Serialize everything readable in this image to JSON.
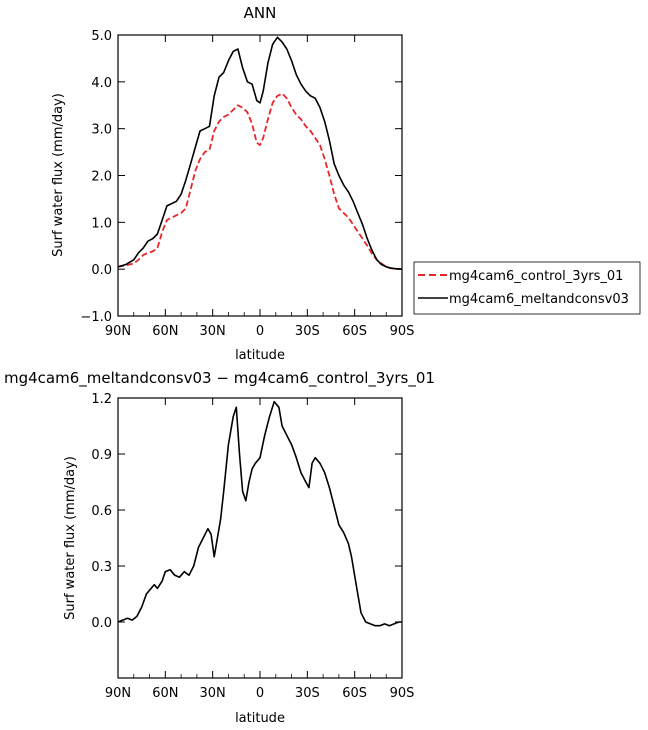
{
  "chart_data": [
    {
      "type": "line",
      "title": "ANN",
      "xlabel": "latitude",
      "ylabel": "Surf water flux (mm/day)",
      "xlim": [
        90,
        -90
      ],
      "ylim": [
        -1.0,
        5.0
      ],
      "xticks": [
        90,
        60,
        30,
        0,
        -30,
        -60,
        -90
      ],
      "xticklabels": [
        "90N",
        "60N",
        "30N",
        "0",
        "30S",
        "60S",
        "90S"
      ],
      "yticks": [
        -1.0,
        0.0,
        1.0,
        2.0,
        3.0,
        4.0,
        5.0
      ],
      "yticklabels": [
        "−1.0",
        "0.0",
        "1.0",
        "2.0",
        "3.0",
        "4.0",
        "5.0"
      ],
      "legend_position": "right",
      "series": [
        {
          "name": "mg4cam6_control_3yrs_01",
          "color": "#e8262a",
          "style": "dashed",
          "x": [
            90,
            85,
            80,
            77,
            74,
            71,
            68,
            65,
            62,
            59,
            56,
            53,
            50,
            47,
            44,
            41,
            38,
            35,
            32,
            29,
            26,
            23,
            20,
            17,
            14,
            11,
            8,
            5,
            2,
            0,
            -2,
            -5,
            -8,
            -11,
            -14,
            -17,
            -20,
            -23,
            -26,
            -29,
            -32,
            -35,
            -38,
            -41,
            -44,
            -47,
            -50,
            -53,
            -56,
            -59,
            -62,
            -65,
            -68,
            -71,
            -74,
            -77,
            -80,
            -83,
            -86,
            -90
          ],
          "y": [
            0.05,
            0.08,
            0.12,
            0.2,
            0.3,
            0.35,
            0.38,
            0.45,
            0.8,
            1.05,
            1.1,
            1.15,
            1.2,
            1.3,
            1.7,
            2.1,
            2.35,
            2.5,
            2.55,
            2.95,
            3.15,
            3.25,
            3.3,
            3.4,
            3.5,
            3.45,
            3.35,
            3.1,
            2.7,
            2.65,
            2.8,
            3.2,
            3.55,
            3.7,
            3.75,
            3.65,
            3.45,
            3.3,
            3.2,
            3.05,
            2.95,
            2.8,
            2.65,
            2.35,
            2.0,
            1.6,
            1.3,
            1.2,
            1.1,
            0.95,
            0.8,
            0.65,
            0.5,
            0.33,
            0.2,
            0.12,
            0.05,
            0.02,
            0.01,
            0.0
          ]
        },
        {
          "name": "mg4cam6_meltandconsv03",
          "color": "#000000",
          "style": "solid",
          "x": [
            90,
            85,
            80,
            77,
            74,
            71,
            68,
            65,
            62,
            59,
            56,
            53,
            50,
            47,
            44,
            41,
            38,
            35,
            32,
            29,
            26,
            23,
            20,
            17,
            14,
            11,
            8,
            5,
            2,
            0,
            -2,
            -5,
            -8,
            -11,
            -14,
            -17,
            -20,
            -23,
            -26,
            -29,
            -32,
            -35,
            -38,
            -41,
            -44,
            -47,
            -50,
            -53,
            -56,
            -59,
            -62,
            -65,
            -68,
            -71,
            -74,
            -77,
            -80,
            -83,
            -86,
            -90
          ],
          "y": [
            0.05,
            0.1,
            0.2,
            0.35,
            0.45,
            0.6,
            0.65,
            0.75,
            1.05,
            1.35,
            1.4,
            1.45,
            1.6,
            1.9,
            2.25,
            2.6,
            2.95,
            3.0,
            3.05,
            3.7,
            4.1,
            4.2,
            4.45,
            4.65,
            4.7,
            4.3,
            4.0,
            3.95,
            3.6,
            3.55,
            3.8,
            4.4,
            4.8,
            4.95,
            4.85,
            4.7,
            4.45,
            4.15,
            3.95,
            3.8,
            3.7,
            3.65,
            3.45,
            3.15,
            2.75,
            2.25,
            2.0,
            1.8,
            1.65,
            1.45,
            1.2,
            0.95,
            0.65,
            0.4,
            0.2,
            0.1,
            0.05,
            0.02,
            0.01,
            0.0
          ]
        }
      ]
    },
    {
      "type": "line",
      "title": "mg4cam6_meltandconsv03 − mg4cam6_control_3yrs_01",
      "xlabel": "latitude",
      "ylabel": "Surf water flux (mm/day)",
      "xlim": [
        90,
        -90
      ],
      "ylim": [
        -0.3,
        1.2
      ],
      "xticks": [
        90,
        60,
        30,
        0,
        -30,
        -60,
        -90
      ],
      "xticklabels": [
        "90N",
        "60N",
        "30N",
        "0",
        "30S",
        "60S",
        "90S"
      ],
      "yticks": [
        0.0,
        0.3,
        0.6,
        0.9,
        1.2
      ],
      "yticklabels": [
        "0.0",
        "0.3",
        "0.6",
        "0.9",
        "1.2"
      ],
      "series": [
        {
          "color": "#000000",
          "style": "solid",
          "x": [
            90,
            87,
            84,
            81,
            78,
            75,
            72,
            69,
            67,
            65,
            62,
            60,
            57,
            54,
            51,
            48,
            45,
            42,
            39,
            36,
            33,
            31,
            29,
            27,
            25,
            23,
            20,
            17,
            15,
            13,
            11,
            9,
            7,
            5,
            3,
            0,
            -3,
            -6,
            -9,
            -12,
            -14,
            -17,
            -20,
            -23,
            -26,
            -29,
            -31,
            -33,
            -35,
            -38,
            -41,
            -44,
            -47,
            -50,
            -53,
            -56,
            -58,
            -61,
            -64,
            -67,
            -70,
            -73,
            -76,
            -79,
            -82,
            -85,
            -88,
            -90
          ],
          "y": [
            0.0,
            0.01,
            0.02,
            0.01,
            0.03,
            0.08,
            0.15,
            0.18,
            0.2,
            0.18,
            0.22,
            0.27,
            0.28,
            0.25,
            0.24,
            0.27,
            0.25,
            0.3,
            0.4,
            0.45,
            0.5,
            0.47,
            0.35,
            0.45,
            0.55,
            0.7,
            0.95,
            1.1,
            1.15,
            0.9,
            0.7,
            0.65,
            0.75,
            0.82,
            0.85,
            0.88,
            1.0,
            1.1,
            1.18,
            1.15,
            1.05,
            1.0,
            0.95,
            0.88,
            0.8,
            0.75,
            0.72,
            0.85,
            0.88,
            0.85,
            0.8,
            0.72,
            0.62,
            0.52,
            0.48,
            0.42,
            0.35,
            0.2,
            0.05,
            0.0,
            -0.01,
            -0.02,
            -0.02,
            -0.01,
            -0.02,
            -0.01,
            0.0,
            0.0
          ]
        }
      ]
    }
  ]
}
